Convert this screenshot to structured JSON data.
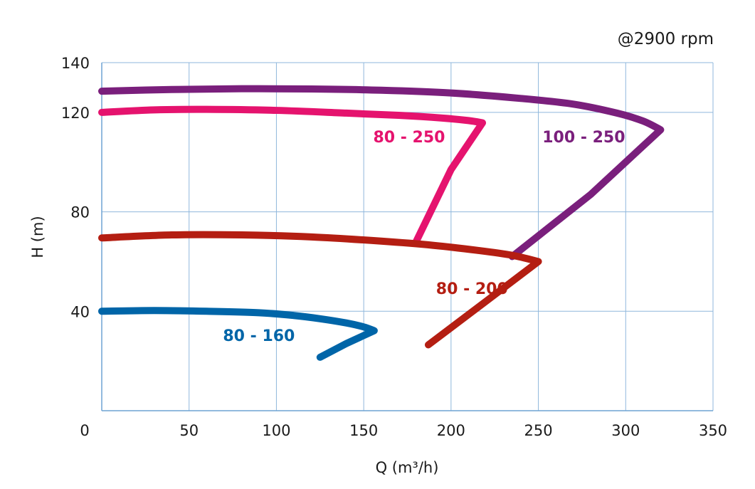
{
  "chart_data": {
    "type": "line",
    "annotation": "@2900 rpm",
    "xlabel": "Q (m³/h)",
    "ylabel": "H (m)",
    "xlim": [
      0,
      350
    ],
    "ylim": [
      0,
      140
    ],
    "xticks": [
      0,
      50,
      100,
      150,
      200,
      250,
      300,
      350
    ],
    "yticks": [
      40,
      80,
      120,
      140
    ],
    "grid": true,
    "series": [
      {
        "name": "80 - 160",
        "color": "#0065a8",
        "points": [
          [
            0,
            40
          ],
          [
            30,
            40.3
          ],
          [
            60,
            40
          ],
          [
            90,
            39.4
          ],
          [
            110,
            38.3
          ],
          [
            125,
            37
          ],
          [
            140,
            35.3
          ],
          [
            150,
            33.7
          ],
          [
            156,
            32.2
          ],
          [
            140,
            27
          ],
          [
            125,
            21.5
          ]
        ]
      },
      {
        "name": "80 - 200",
        "color": "#b41e12",
        "points": [
          [
            0,
            69.5
          ],
          [
            40,
            70.7
          ],
          [
            80,
            70.7
          ],
          [
            120,
            69.9
          ],
          [
            160,
            68.2
          ],
          [
            190,
            66.5
          ],
          [
            215,
            64.5
          ],
          [
            235,
            62.5
          ],
          [
            250,
            60
          ],
          [
            220,
            44
          ],
          [
            187,
            26.5
          ]
        ]
      },
      {
        "name": "80 - 250",
        "color": "#e5136e",
        "points": [
          [
            0,
            120
          ],
          [
            30,
            121
          ],
          [
            60,
            121.2
          ],
          [
            100,
            120.8
          ],
          [
            140,
            119.7
          ],
          [
            170,
            118.8
          ],
          [
            195,
            117.7
          ],
          [
            210,
            116.7
          ],
          [
            218,
            115.8
          ],
          [
            200,
            97
          ],
          [
            180,
            68
          ]
        ]
      },
      {
        "name": "100 - 250",
        "color": "#7a1f7c",
        "points": [
          [
            0,
            128.5
          ],
          [
            40,
            129.2
          ],
          [
            80,
            129.5
          ],
          [
            120,
            129.4
          ],
          [
            160,
            128.9
          ],
          [
            200,
            127.8
          ],
          [
            240,
            125.6
          ],
          [
            270,
            123.3
          ],
          [
            295,
            119.7
          ],
          [
            310,
            116.5
          ],
          [
            320,
            113
          ],
          [
            280,
            87
          ],
          [
            235,
            62
          ]
        ]
      }
    ]
  }
}
